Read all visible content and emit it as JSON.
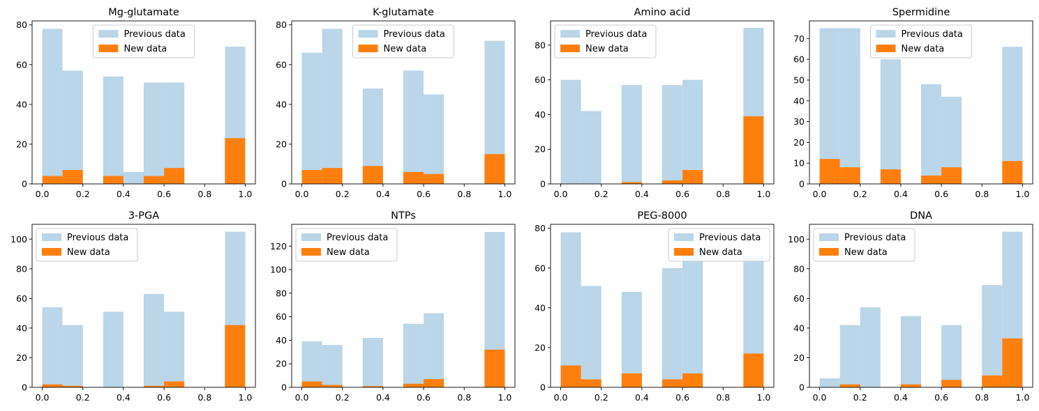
{
  "chart_data": [
    {
      "type": "bar",
      "title": "Mg-glutamate",
      "xlim": [
        -0.05,
        1.05
      ],
      "ylim": [
        0,
        82
      ],
      "xticks": [
        0.0,
        0.2,
        0.4,
        0.6,
        0.8,
        1.0
      ],
      "xtick_labels": [
        "0.0",
        "0.2",
        "0.4",
        "0.6",
        "0.8",
        "1.0"
      ],
      "yticks": [
        0,
        20,
        40,
        60,
        80
      ],
      "ytick_labels": [
        "0",
        "20",
        "40",
        "60",
        "80"
      ],
      "legend_position": "upper-center",
      "bin_edges": [
        0,
        0.1,
        0.2,
        0.3,
        0.4,
        0.5,
        0.6,
        0.7,
        0.8,
        0.9,
        1.0
      ],
      "series": [
        {
          "name": "Previous data",
          "color": "#bad6e8",
          "values": [
            78,
            57,
            0,
            54,
            6,
            51,
            51,
            0,
            0,
            69
          ]
        },
        {
          "name": "New data",
          "color": "#ff7f0e",
          "values": [
            4,
            7,
            0,
            4,
            0,
            4,
            8,
            0,
            0,
            23
          ]
        }
      ]
    },
    {
      "type": "bar",
      "title": "K-glutamate",
      "xlim": [
        -0.05,
        1.05
      ],
      "ylim": [
        0,
        82
      ],
      "xticks": [
        0.0,
        0.2,
        0.4,
        0.6,
        0.8,
        1.0
      ],
      "xtick_labels": [
        "0.0",
        "0.2",
        "0.4",
        "0.6",
        "0.8",
        "1.0"
      ],
      "yticks": [
        0,
        20,
        40,
        60,
        80
      ],
      "ytick_labels": [
        "0",
        "20",
        "40",
        "60",
        "80"
      ],
      "legend_position": "upper-center",
      "bin_edges": [
        0,
        0.1,
        0.2,
        0.3,
        0.4,
        0.5,
        0.6,
        0.7,
        0.8,
        0.9,
        1.0
      ],
      "series": [
        {
          "name": "Previous data",
          "color": "#bad6e8",
          "values": [
            66,
            78,
            0,
            48,
            0,
            57,
            45,
            0,
            0,
            72
          ]
        },
        {
          "name": "New data",
          "color": "#ff7f0e",
          "values": [
            7,
            8,
            0,
            9,
            0,
            6,
            5,
            0,
            0,
            15
          ]
        }
      ]
    },
    {
      "type": "bar",
      "title": "Amino acid",
      "xlim": [
        -0.05,
        1.05
      ],
      "ylim": [
        0,
        94
      ],
      "xticks": [
        0.0,
        0.2,
        0.4,
        0.6,
        0.8,
        1.0
      ],
      "xtick_labels": [
        "0.0",
        "0.2",
        "0.4",
        "0.6",
        "0.8",
        "1.0"
      ],
      "yticks": [
        0,
        20,
        40,
        60,
        80
      ],
      "ytick_labels": [
        "0",
        "20",
        "40",
        "60",
        "80"
      ],
      "legend_position": "upper-left",
      "bin_edges": [
        0,
        0.1,
        0.2,
        0.3,
        0.4,
        0.5,
        0.6,
        0.7,
        0.8,
        0.9,
        1.0
      ],
      "series": [
        {
          "name": "Previous data",
          "color": "#bad6e8",
          "values": [
            60,
            42,
            0,
            57,
            0,
            57,
            60,
            0,
            0,
            90
          ]
        },
        {
          "name": "New data",
          "color": "#ff7f0e",
          "values": [
            0,
            0,
            0,
            1,
            0,
            2,
            8,
            0,
            0,
            39
          ]
        }
      ]
    },
    {
      "type": "bar",
      "title": "Spermidine",
      "xlim": [
        -0.05,
        1.05
      ],
      "ylim": [
        0,
        78.5
      ],
      "xticks": [
        0.0,
        0.2,
        0.4,
        0.6,
        0.8,
        1.0
      ],
      "xtick_labels": [
        "0.0",
        "0.2",
        "0.4",
        "0.6",
        "0.8",
        "1.0"
      ],
      "yticks": [
        0,
        10,
        20,
        30,
        40,
        50,
        60,
        70
      ],
      "ytick_labels": [
        "0",
        "10",
        "20",
        "30",
        "40",
        "50",
        "60",
        "70"
      ],
      "legend_position": "upper-center",
      "bin_edges": [
        0,
        0.1,
        0.2,
        0.3,
        0.4,
        0.5,
        0.6,
        0.7,
        0.8,
        0.9,
        1.0
      ],
      "series": [
        {
          "name": "Previous data",
          "color": "#bad6e8",
          "values": [
            75,
            75,
            0,
            60,
            0,
            48,
            42,
            0,
            0,
            66
          ]
        },
        {
          "name": "New data",
          "color": "#ff7f0e",
          "values": [
            12,
            8,
            0,
            7,
            0,
            4,
            8,
            0,
            0,
            11
          ]
        }
      ]
    },
    {
      "type": "bar",
      "title": "3-PGA",
      "xlim": [
        -0.05,
        1.05
      ],
      "ylim": [
        0,
        110
      ],
      "xticks": [
        0.0,
        0.2,
        0.4,
        0.6,
        0.8,
        1.0
      ],
      "xtick_labels": [
        "0.0",
        "0.2",
        "0.4",
        "0.6",
        "0.8",
        "1.0"
      ],
      "yticks": [
        0,
        20,
        40,
        60,
        80,
        100
      ],
      "ytick_labels": [
        "0",
        "20",
        "40",
        "60",
        "80",
        "100"
      ],
      "legend_position": "upper-left",
      "bin_edges": [
        0,
        0.1,
        0.2,
        0.3,
        0.4,
        0.5,
        0.6,
        0.7,
        0.8,
        0.9,
        1.0
      ],
      "series": [
        {
          "name": "Previous data",
          "color": "#bad6e8",
          "values": [
            54,
            42,
            0,
            51,
            0,
            63,
            51,
            0,
            0,
            105
          ]
        },
        {
          "name": "New data",
          "color": "#ff7f0e",
          "values": [
            2,
            1,
            0,
            0,
            0,
            1,
            4,
            0,
            0,
            42
          ]
        }
      ]
    },
    {
      "type": "bar",
      "title": "NTPs",
      "xlim": [
        -0.05,
        1.05
      ],
      "ylim": [
        0,
        138.5
      ],
      "xticks": [
        0.0,
        0.2,
        0.4,
        0.6,
        0.8,
        1.0
      ],
      "xtick_labels": [
        "0.0",
        "0.2",
        "0.4",
        "0.6",
        "0.8",
        "1.0"
      ],
      "yticks": [
        0,
        20,
        40,
        60,
        80,
        100,
        120
      ],
      "ytick_labels": [
        "0",
        "20",
        "40",
        "60",
        "80",
        "100",
        "120"
      ],
      "legend_position": "upper-left",
      "bin_edges": [
        0,
        0.1,
        0.2,
        0.3,
        0.4,
        0.5,
        0.6,
        0.7,
        0.8,
        0.9,
        1.0
      ],
      "series": [
        {
          "name": "Previous data",
          "color": "#bad6e8",
          "values": [
            39,
            36,
            0,
            42,
            0,
            54,
            63,
            0,
            0,
            132
          ]
        },
        {
          "name": "New data",
          "color": "#ff7f0e",
          "values": [
            5,
            2,
            0,
            1,
            0,
            3,
            7,
            0,
            0,
            32
          ]
        }
      ]
    },
    {
      "type": "bar",
      "title": "PEG-8000",
      "xlim": [
        -0.05,
        1.05
      ],
      "ylim": [
        0,
        82
      ],
      "xticks": [
        0.0,
        0.2,
        0.4,
        0.6,
        0.8,
        1.0
      ],
      "xtick_labels": [
        "0.0",
        "0.2",
        "0.4",
        "0.6",
        "0.8",
        "1.0"
      ],
      "yticks": [
        0,
        20,
        40,
        60,
        80
      ],
      "ytick_labels": [
        "0",
        "20",
        "40",
        "60",
        "80"
      ],
      "legend_position": "upper-right",
      "bin_edges": [
        0,
        0.1,
        0.2,
        0.3,
        0.4,
        0.5,
        0.6,
        0.7,
        0.8,
        0.9,
        1.0
      ],
      "series": [
        {
          "name": "Previous data",
          "color": "#bad6e8",
          "values": [
            78,
            51,
            0,
            48,
            0,
            60,
            69,
            0,
            0,
            66
          ]
        },
        {
          "name": "New data",
          "color": "#ff7f0e",
          "values": [
            11,
            4,
            0,
            7,
            0,
            4,
            7,
            0,
            0,
            17
          ]
        }
      ]
    },
    {
      "type": "bar",
      "title": "DNA",
      "xlim": [
        -0.05,
        1.05
      ],
      "ylim": [
        0,
        110
      ],
      "xticks": [
        0.0,
        0.2,
        0.4,
        0.6,
        0.8,
        1.0
      ],
      "xtick_labels": [
        "0.0",
        "0.2",
        "0.4",
        "0.6",
        "0.8",
        "1.0"
      ],
      "yticks": [
        0,
        20,
        40,
        60,
        80,
        100
      ],
      "ytick_labels": [
        "0",
        "20",
        "40",
        "60",
        "80",
        "100"
      ],
      "legend_position": "upper-left",
      "bin_edges": [
        0,
        0.1,
        0.2,
        0.3,
        0.4,
        0.5,
        0.6,
        0.7,
        0.8,
        0.9,
        1.0
      ],
      "series": [
        {
          "name": "Previous data",
          "color": "#bad6e8",
          "values": [
            6,
            42,
            54,
            0,
            48,
            0,
            42,
            0,
            69,
            105
          ]
        },
        {
          "name": "New data",
          "color": "#ff7f0e",
          "values": [
            0,
            2,
            0,
            0,
            2,
            0,
            5,
            0,
            8,
            33
          ]
        }
      ]
    }
  ]
}
